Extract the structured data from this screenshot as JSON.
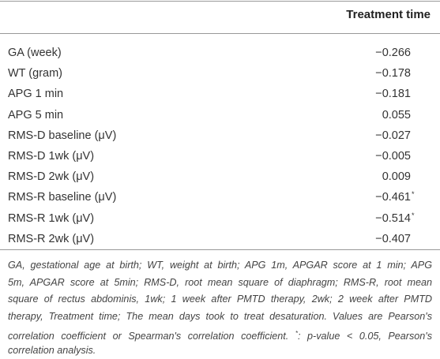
{
  "table": {
    "header": [
      "",
      "Treatment time"
    ],
    "rows": [
      {
        "label": "GA (week)",
        "value": "−0.266"
      },
      {
        "label": "WT (gram)",
        "value": "−0.178"
      },
      {
        "label": "APG 1 min",
        "value": "−0.181"
      },
      {
        "label": "APG 5 min",
        "value": "0.055"
      },
      {
        "label": "RMS-D baseline (μV)",
        "value": "−0.027"
      },
      {
        "label": "RMS-D 1wk (μV)",
        "value": "−0.005"
      },
      {
        "label": "RMS-D 2wk (μV)",
        "value": "0.009"
      },
      {
        "label": "RMS-R baseline (μV)",
        "value": "−0.461",
        "sup": "*"
      },
      {
        "label": "RMS-R 1wk (μV)",
        "value": "−0.514",
        "sup": "*"
      },
      {
        "label": "RMS-R 2wk (μV)",
        "value": "−0.407"
      }
    ]
  },
  "footnote": {
    "lines": [
      [
        "GA, gestational age at birth; WT, weight at birth; APG 1m, APGAR score at 1 min; APG"
      ],
      [
        "5m, APGAR score at 5min; RMS-D, root mean square of diaphragm; RMS-R, root mean"
      ],
      [
        "square of rectus abdominis, 1wk; 1 week after PMTD therapy, 2wk; 2 week after PMTD"
      ],
      [
        "therapy, Treatment time; The mean days took to treat desaturation. Values are Pearson's"
      ],
      [
        "correlation coefficient or Spearman's correlation coefficient. ",
        {
          "sup": "*"
        },
        ": p-value < 0.05, Pearson's"
      ],
      [
        "correlation analysis."
      ]
    ]
  }
}
